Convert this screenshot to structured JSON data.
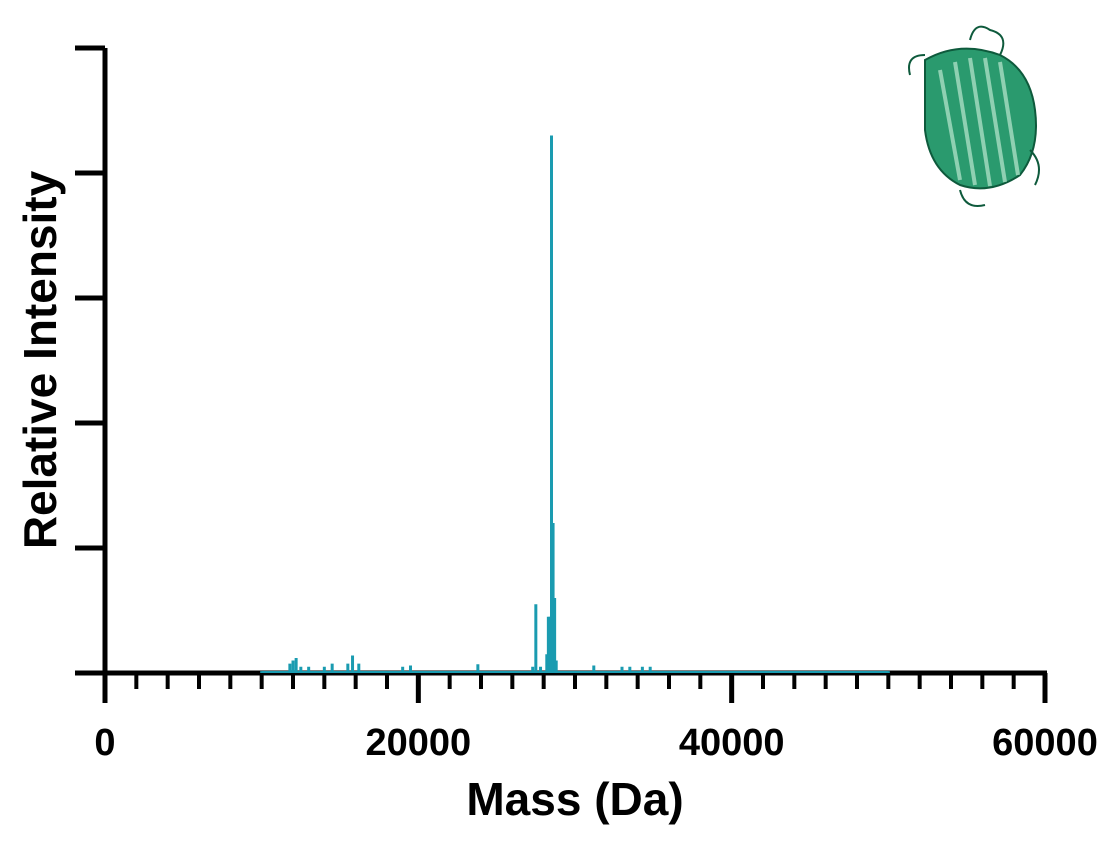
{
  "chart_data": {
    "type": "stem",
    "x_label": "Mass (Da)",
    "y_label": "Relative Intensity",
    "x": [
      10000,
      11800,
      12000,
      12200,
      12500,
      13000,
      14000,
      14500,
      15500,
      15800,
      16200,
      19000,
      19500,
      23800,
      27300,
      27500,
      27800,
      28200,
      28300,
      28400,
      28500,
      28600,
      28700,
      28800,
      31200,
      33000,
      33500,
      34300,
      34800,
      50000
    ],
    "values": [
      0.3,
      1.5,
      2,
      2.4,
      1,
      1,
      1,
      1.5,
      1.5,
      2.8,
      1.5,
      1,
      1.2,
      1.4,
      1,
      11,
      1,
      3,
      9,
      9,
      86,
      24,
      12,
      2,
      1.2,
      1,
      1,
      1,
      1,
      0.3
    ],
    "color": "#1a9bb0",
    "xlim": [
      0,
      60000
    ],
    "xticks": [
      0,
      20000,
      40000,
      60000
    ],
    "xminorticks": [
      2000,
      4000,
      6000,
      8000,
      10000,
      12000,
      14000,
      16000,
      18000,
      22000,
      24000,
      26000,
      28000,
      30000,
      32000,
      34000,
      36000,
      38000,
      42000,
      44000,
      46000,
      48000,
      50000,
      52000,
      54000,
      56000,
      58000
    ],
    "ylim": [
      0,
      100
    ],
    "yticks": [
      0,
      20,
      40,
      60,
      80,
      100
    ]
  }
}
